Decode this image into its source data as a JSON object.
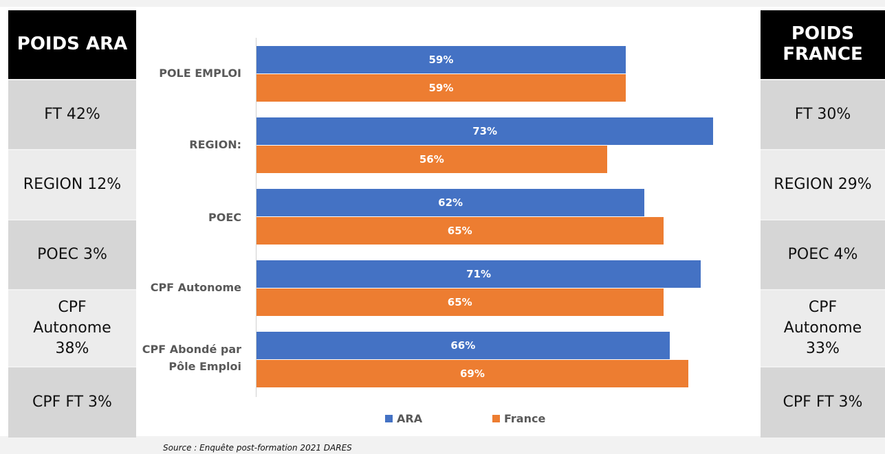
{
  "left_panel": {
    "title": "POIDS ARA",
    "rows": [
      "FT 42%",
      "REGION 12%",
      "POEC 3%",
      "CPF\nAutonome\n38%",
      "CPF FT 3%"
    ]
  },
  "right_panel": {
    "title": "POIDS\nFRANCE",
    "rows": [
      "FT 30%",
      "REGION 29%",
      "POEC 4%",
      "CPF\nAutonome\n33%",
      "CPF FT 3%"
    ]
  },
  "chart_data": {
    "type": "bar",
    "orientation": "horizontal",
    "categories": [
      "POLE EMPLOI",
      "REGIONS",
      "POEC",
      "CPF Autonome",
      "CPF Abondé par\nPôle Emploi"
    ],
    "categories_displayed": [
      "POLE EMPLOI",
      "REGION:",
      "POEC",
      "CPF Autonome",
      "CPF Abondé par\nPôle Emploi"
    ],
    "series": [
      {
        "name": "ARA",
        "values": [
          59,
          73,
          62,
          71,
          66
        ],
        "labels": [
          "59%",
          "73%",
          "62%",
          "71%",
          "66%"
        ],
        "color": "#4472c4"
      },
      {
        "name": "France",
        "values": [
          59,
          56,
          65,
          65,
          69
        ],
        "labels": [
          "59%",
          "56%",
          "65%",
          "65%",
          "69%"
        ],
        "color": "#ed7d31"
      }
    ],
    "legend_position": "bottom",
    "grid": false
  },
  "source": "Source : Enquête post-formation 2021 DARES"
}
